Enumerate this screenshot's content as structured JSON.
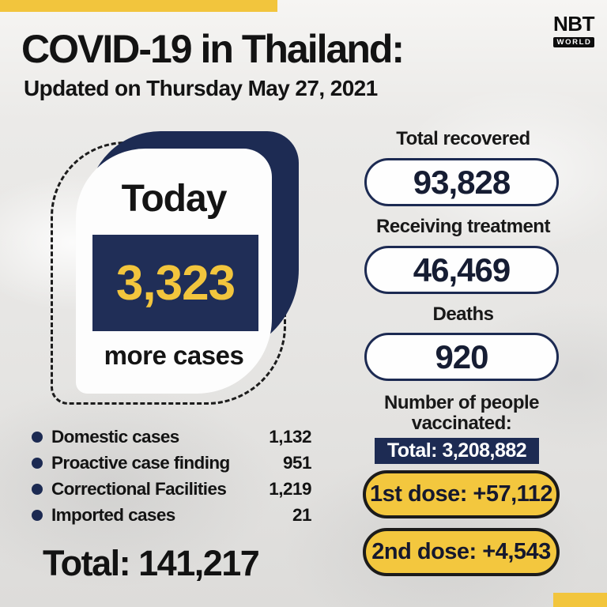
{
  "brand": {
    "name": "NBT",
    "world": "WORLD"
  },
  "header": {
    "title": "COVID-19 in Thailand:",
    "subtitle": "Updated on Thursday May 27, 2021"
  },
  "today_card": {
    "label": "Today",
    "value": "3,323",
    "caption": "more cases"
  },
  "stats": [
    {
      "label": "Total recovered",
      "value": "93,828"
    },
    {
      "label": "Receiving treatment",
      "value": "46,469"
    },
    {
      "label": "Deaths",
      "value": "920"
    }
  ],
  "vaccination": {
    "heading": "Number of people vaccinated:",
    "total": "Total: 3,208,882",
    "doses": [
      "1st dose: +57,112",
      "2nd dose: +4,543"
    ]
  },
  "breakdown": {
    "items": [
      {
        "label": "Domestic cases",
        "value": "1,132"
      },
      {
        "label": "Proactive case finding",
        "value": "951"
      },
      {
        "label": "Correctional Facilities",
        "value": "1,219"
      },
      {
        "label": "Imported cases",
        "value": "21"
      }
    ],
    "total": "Total: 141,217"
  },
  "colors": {
    "navy": "#1d2b53",
    "yellow": "#f2c53d",
    "text": "#121212"
  },
  "chart_data": {
    "type": "table",
    "title": "COVID-19 in Thailand: Updated on Thursday May 27, 2021",
    "rows": [
      {
        "label": "New cases today",
        "value": 3323
      },
      {
        "label": "Total recovered",
        "value": 93828
      },
      {
        "label": "Receiving treatment",
        "value": 46469
      },
      {
        "label": "Deaths",
        "value": 920
      },
      {
        "label": "People vaccinated total",
        "value": 3208882
      },
      {
        "label": "1st dose today",
        "value": 57112
      },
      {
        "label": "2nd dose today",
        "value": 4543
      },
      {
        "label": "Domestic cases",
        "value": 1132
      },
      {
        "label": "Proactive case finding",
        "value": 951
      },
      {
        "label": "Correctional Facilities",
        "value": 1219
      },
      {
        "label": "Imported cases",
        "value": 21
      },
      {
        "label": "Total cases",
        "value": 141217
      }
    ]
  }
}
